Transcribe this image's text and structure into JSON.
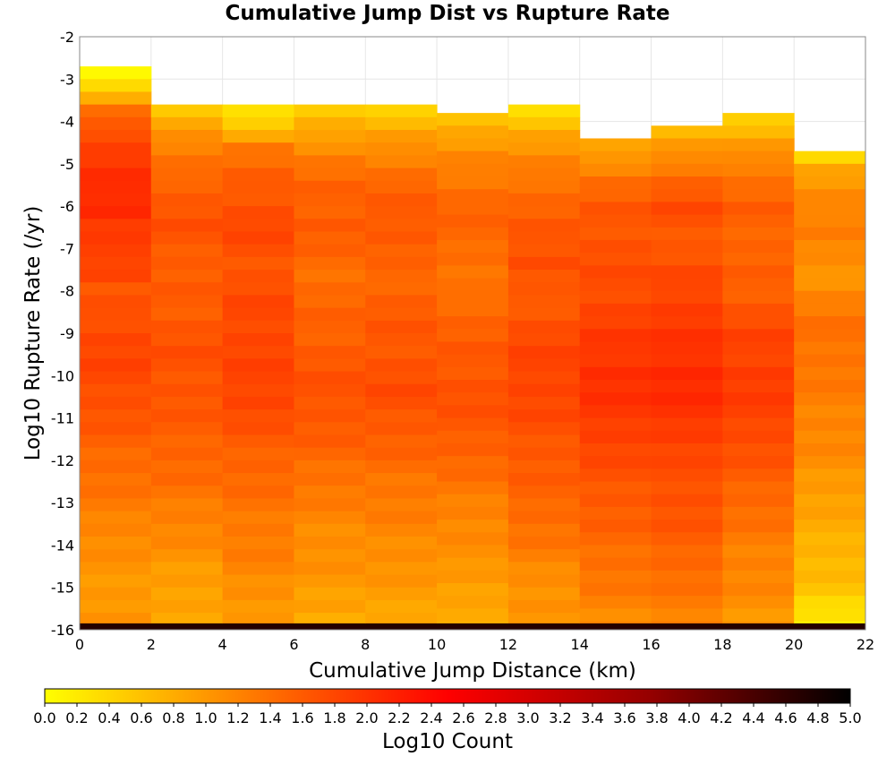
{
  "chart_data": {
    "type": "heatmap",
    "title": "Cumulative Jump Dist vs Rupture Rate",
    "xlabel": "Cumulative Jump Distance (km)",
    "ylabel": "Log10 Rupture Rate (/yr)",
    "xlim": [
      0,
      22
    ],
    "ylim": [
      -16,
      -2
    ],
    "x_ticks": [
      "0",
      "2",
      "4",
      "6",
      "8",
      "10",
      "12",
      "14",
      "16",
      "18",
      "20",
      "22"
    ],
    "y_ticks": [
      "-2",
      "-3",
      "-4",
      "-5",
      "-6",
      "-7",
      "-8",
      "-9",
      "-10",
      "-11",
      "-12",
      "-13",
      "-14",
      "-15",
      "-16"
    ],
    "x_bin_width": 2,
    "y_bin_width": 0.3,
    "grid": true,
    "colorbar": {
      "label": "Log10 Count",
      "range": [
        0,
        5
      ],
      "ticks": [
        "0.0",
        "0.2",
        "0.4",
        "0.6",
        "0.8",
        "1.0",
        "1.2",
        "1.4",
        "1.6",
        "1.8",
        "2.0",
        "2.2",
        "2.4",
        "2.6",
        "2.8",
        "3.0",
        "3.2",
        "3.4",
        "3.6",
        "3.8",
        "4.0",
        "4.2",
        "4.4",
        "4.6",
        "4.8",
        "5.0"
      ],
      "colors": [
        "#ffff00",
        "#ff6400",
        "#ff0000",
        "#960000",
        "#000000"
      ],
      "stops": [
        0,
        0.3,
        0.5,
        0.75,
        1
      ]
    },
    "columns": [
      {
        "x_range": [
          0,
          2
        ],
        "y_top": -2.7,
        "log10_count_profile": [
          [
            -2.7,
            0.05
          ],
          [
            -3.2,
            0.35
          ],
          [
            -3.7,
            1.3
          ],
          [
            -4.2,
            1.75
          ],
          [
            -5.0,
            1.95
          ],
          [
            -6.0,
            2.15
          ],
          [
            -6.6,
            1.85
          ],
          [
            -7.5,
            1.9
          ],
          [
            -8.0,
            1.6
          ],
          [
            -9.0,
            1.8
          ],
          [
            -10.0,
            1.8
          ],
          [
            -11.0,
            1.65
          ],
          [
            -12.0,
            1.45
          ],
          [
            -13.0,
            1.3
          ],
          [
            -14.0,
            1.1
          ],
          [
            -15.0,
            1.0
          ],
          [
            -15.9,
            1.0
          ]
        ]
      },
      {
        "x_range": [
          2,
          4
        ],
        "y_top": -3.6,
        "log10_count_profile": [
          [
            -3.6,
            0.3
          ],
          [
            -4.0,
            0.9
          ],
          [
            -4.6,
            1.2
          ],
          [
            -5.5,
            1.55
          ],
          [
            -6.5,
            1.7
          ],
          [
            -7.5,
            1.55
          ],
          [
            -8.5,
            1.6
          ],
          [
            -9.5,
            1.7
          ],
          [
            -10.5,
            1.65
          ],
          [
            -11.5,
            1.55
          ],
          [
            -12.5,
            1.4
          ],
          [
            -13.5,
            1.2
          ],
          [
            -14.5,
            1.0
          ],
          [
            -15.5,
            0.85
          ],
          [
            -15.9,
            0.8
          ]
        ]
      },
      {
        "x_range": [
          4,
          6
        ],
        "y_top": -3.6,
        "log10_count_profile": [
          [
            -3.6,
            0.1
          ],
          [
            -4.1,
            0.5
          ],
          [
            -4.6,
            1.3
          ],
          [
            -5.5,
            1.6
          ],
          [
            -6.5,
            1.8
          ],
          [
            -7.5,
            1.65
          ],
          [
            -8.5,
            1.8
          ],
          [
            -9.5,
            1.8
          ],
          [
            -10.5,
            1.85
          ],
          [
            -11.5,
            1.6
          ],
          [
            -12.5,
            1.45
          ],
          [
            -13.5,
            1.3
          ],
          [
            -14.5,
            1.2
          ],
          [
            -15.5,
            1.0
          ],
          [
            -15.9,
            0.9
          ]
        ]
      },
      {
        "x_range": [
          6,
          8
        ],
        "y_top": -3.6,
        "log10_count_profile": [
          [
            -3.6,
            0.45
          ],
          [
            -4.2,
            0.8
          ],
          [
            -4.8,
            1.25
          ],
          [
            -5.5,
            1.5
          ],
          [
            -6.5,
            1.6
          ],
          [
            -7.5,
            1.4
          ],
          [
            -8.5,
            1.5
          ],
          [
            -9.5,
            1.6
          ],
          [
            -10.5,
            1.7
          ],
          [
            -11.5,
            1.55
          ],
          [
            -12.5,
            1.35
          ],
          [
            -13.5,
            1.15
          ],
          [
            -14.5,
            1.05
          ],
          [
            -15.5,
            0.9
          ],
          [
            -15.9,
            0.75
          ]
        ]
      },
      {
        "x_range": [
          8,
          10
        ],
        "y_top": -3.6,
        "log10_count_profile": [
          [
            -3.6,
            0.25
          ],
          [
            -4.1,
            0.75
          ],
          [
            -4.8,
            1.2
          ],
          [
            -5.5,
            1.5
          ],
          [
            -6.5,
            1.65
          ],
          [
            -7.5,
            1.45
          ],
          [
            -8.5,
            1.6
          ],
          [
            -9.5,
            1.65
          ],
          [
            -10.5,
            1.75
          ],
          [
            -11.5,
            1.55
          ],
          [
            -12.5,
            1.35
          ],
          [
            -13.5,
            1.2
          ],
          [
            -14.5,
            1.05
          ],
          [
            -15.5,
            0.9
          ],
          [
            -15.9,
            0.8
          ]
        ]
      },
      {
        "x_range": [
          10,
          12
        ],
        "y_top": -3.8,
        "log10_count_profile": [
          [
            -3.8,
            0.6
          ],
          [
            -4.4,
            0.9
          ],
          [
            -5.0,
            1.2
          ],
          [
            -6.0,
            1.5
          ],
          [
            -7.0,
            1.45
          ],
          [
            -7.8,
            1.3
          ],
          [
            -8.5,
            1.5
          ],
          [
            -9.5,
            1.6
          ],
          [
            -10.5,
            1.7
          ],
          [
            -11.5,
            1.6
          ],
          [
            -12.5,
            1.35
          ],
          [
            -13.5,
            1.15
          ],
          [
            -14.5,
            1.05
          ],
          [
            -15.5,
            0.8
          ],
          [
            -15.9,
            0.85
          ]
        ]
      },
      {
        "x_range": [
          12,
          14
        ],
        "y_top": -3.6,
        "log10_count_profile": [
          [
            -3.6,
            0.15
          ],
          [
            -4.2,
            0.8
          ],
          [
            -4.8,
            1.1
          ],
          [
            -5.5,
            1.4
          ],
          [
            -6.5,
            1.6
          ],
          [
            -7.3,
            1.75
          ],
          [
            -8.0,
            1.55
          ],
          [
            -9.0,
            1.75
          ],
          [
            -10.0,
            1.85
          ],
          [
            -11.0,
            1.75
          ],
          [
            -12.0,
            1.6
          ],
          [
            -13.0,
            1.5
          ],
          [
            -14.0,
            1.3
          ],
          [
            -15.0,
            1.05
          ],
          [
            -15.9,
            1.0
          ]
        ]
      },
      {
        "x_range": [
          14,
          16
        ],
        "y_top": -4.4,
        "log10_count_profile": [
          [
            -4.4,
            0.7
          ],
          [
            -4.9,
            1.05
          ],
          [
            -5.4,
            1.4
          ],
          [
            -6.0,
            1.6
          ],
          [
            -7.0,
            1.7
          ],
          [
            -8.0,
            1.75
          ],
          [
            -9.0,
            1.9
          ],
          [
            -10.0,
            2.05
          ],
          [
            -11.0,
            1.95
          ],
          [
            -12.0,
            1.75
          ],
          [
            -13.0,
            1.6
          ],
          [
            -14.0,
            1.45
          ],
          [
            -15.0,
            1.3
          ],
          [
            -15.9,
            1.1
          ]
        ]
      },
      {
        "x_range": [
          16,
          18
        ],
        "y_top": -4.1,
        "log10_count_profile": [
          [
            -4.1,
            0.6
          ],
          [
            -4.6,
            0.95
          ],
          [
            -5.3,
            1.45
          ],
          [
            -6.0,
            1.75
          ],
          [
            -7.0,
            1.6
          ],
          [
            -8.0,
            1.85
          ],
          [
            -9.0,
            1.95
          ],
          [
            -10.0,
            2.1
          ],
          [
            -11.0,
            2.0
          ],
          [
            -12.0,
            1.75
          ],
          [
            -13.0,
            1.7
          ],
          [
            -14.0,
            1.55
          ],
          [
            -15.0,
            1.35
          ],
          [
            -15.9,
            1.2
          ]
        ]
      },
      {
        "x_range": [
          18,
          20
        ],
        "y_top": -3.8,
        "log10_count_profile": [
          [
            -3.8,
            0.3
          ],
          [
            -4.3,
            0.75
          ],
          [
            -5.0,
            1.25
          ],
          [
            -6.0,
            1.55
          ],
          [
            -7.0,
            1.5
          ],
          [
            -8.0,
            1.55
          ],
          [
            -9.0,
            1.8
          ],
          [
            -10.0,
            1.9
          ],
          [
            -11.0,
            1.85
          ],
          [
            -12.0,
            1.65
          ],
          [
            -13.0,
            1.45
          ],
          [
            -14.0,
            1.25
          ],
          [
            -15.0,
            1.15
          ],
          [
            -15.9,
            1.0
          ]
        ]
      },
      {
        "x_range": [
          20,
          22
        ],
        "y_top": -4.7,
        "log10_count_profile": [
          [
            -4.7,
            0.1
          ],
          [
            -5.0,
            0.8
          ],
          [
            -5.6,
            1.05
          ],
          [
            -6.5,
            1.3
          ],
          [
            -7.5,
            1.0
          ],
          [
            -8.3,
            1.25
          ],
          [
            -9.0,
            1.4
          ],
          [
            -10.0,
            1.3
          ],
          [
            -11.0,
            1.2
          ],
          [
            -12.0,
            1.1
          ],
          [
            -13.0,
            0.9
          ],
          [
            -14.0,
            0.75
          ],
          [
            -15.0,
            0.6
          ],
          [
            -15.5,
            0.35
          ],
          [
            -15.9,
            0.1
          ]
        ]
      }
    ],
    "bottom_row": {
      "y_range": [
        -16,
        -15.85
      ],
      "log10_count": 4.7
    }
  }
}
